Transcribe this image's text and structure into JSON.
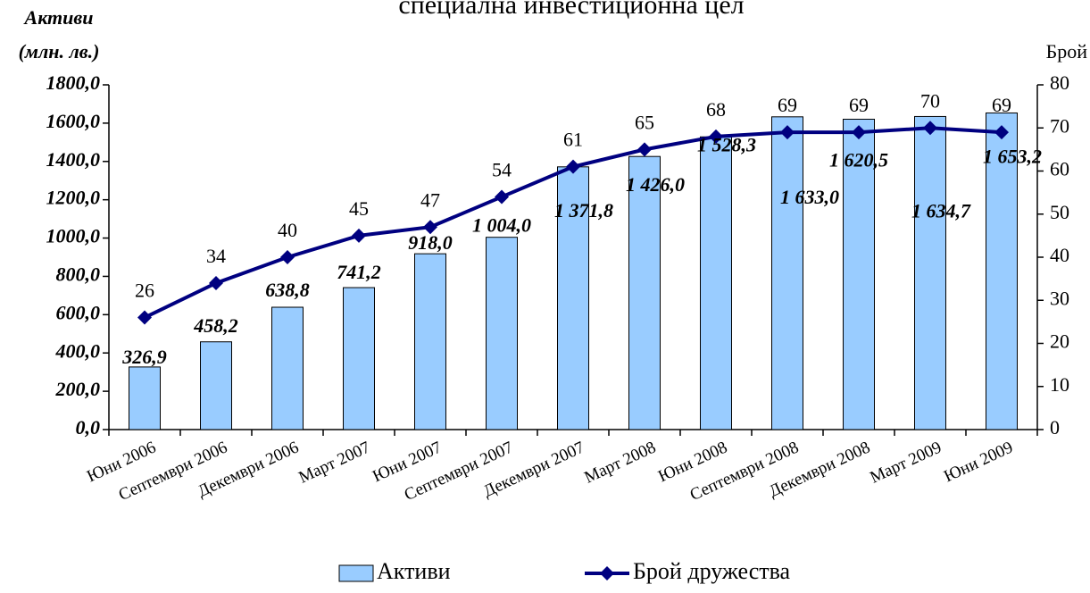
{
  "chart_data": {
    "type": "bar-line",
    "title": "специална инвестиционна цел",
    "ylabel": [
      "Активи",
      "(млн. лв.)"
    ],
    "y2label": "Брой",
    "categories": [
      "Юни 2006",
      "Септември 2006",
      "Декември 2006",
      "Март 2007",
      "Юни 2007",
      "Септември 2007",
      "Декември 2007",
      "Март 2008",
      "Юни 2008",
      "Септември 2008",
      "Декември 2008",
      "Март 2009",
      "Юни 2009"
    ],
    "series": [
      {
        "name": "Активи",
        "type": "bar",
        "color": "#99ccff",
        "values": [
          326.9,
          458.2,
          638.8,
          741.2,
          918.0,
          1004.0,
          1371.8,
          1426.0,
          1528.3,
          1633.0,
          1620.5,
          1634.7,
          1653.2
        ],
        "value_labels": [
          "326,9",
          "458,2",
          "638,8",
          "741,2",
          "918,0",
          "1 004,0",
          "1 371,8",
          "1 426,0",
          "1 528,3",
          "1 633,0",
          "1 620,5",
          "1 634,7",
          "1 653,2"
        ]
      },
      {
        "name": "Брой дружества",
        "type": "line",
        "color": "#000080",
        "axis": "y2",
        "values": [
          26,
          34,
          40,
          45,
          47,
          54,
          61,
          65,
          68,
          69,
          69,
          70,
          69
        ]
      }
    ],
    "ylim": [
      0,
      1800
    ],
    "yticks": [
      {
        "value": 0,
        "label": "0,0"
      },
      {
        "value": 200,
        "label": "200,0"
      },
      {
        "value": 400,
        "label": "400,0"
      },
      {
        "value": 600,
        "label": "600,0"
      },
      {
        "value": 800,
        "label": "800,0"
      },
      {
        "value": 1000,
        "label": "1000,0"
      },
      {
        "value": 1200,
        "label": "1200,0"
      },
      {
        "value": 1400,
        "label": "1400,0"
      },
      {
        "value": 1600,
        "label": "1600,0"
      },
      {
        "value": 1800,
        "label": "1800,0"
      }
    ],
    "y2lim": [
      0,
      80
    ],
    "y2ticks": [
      0,
      10,
      20,
      30,
      40,
      50,
      60,
      70,
      80
    ],
    "grid": false,
    "legend": "bottom"
  }
}
